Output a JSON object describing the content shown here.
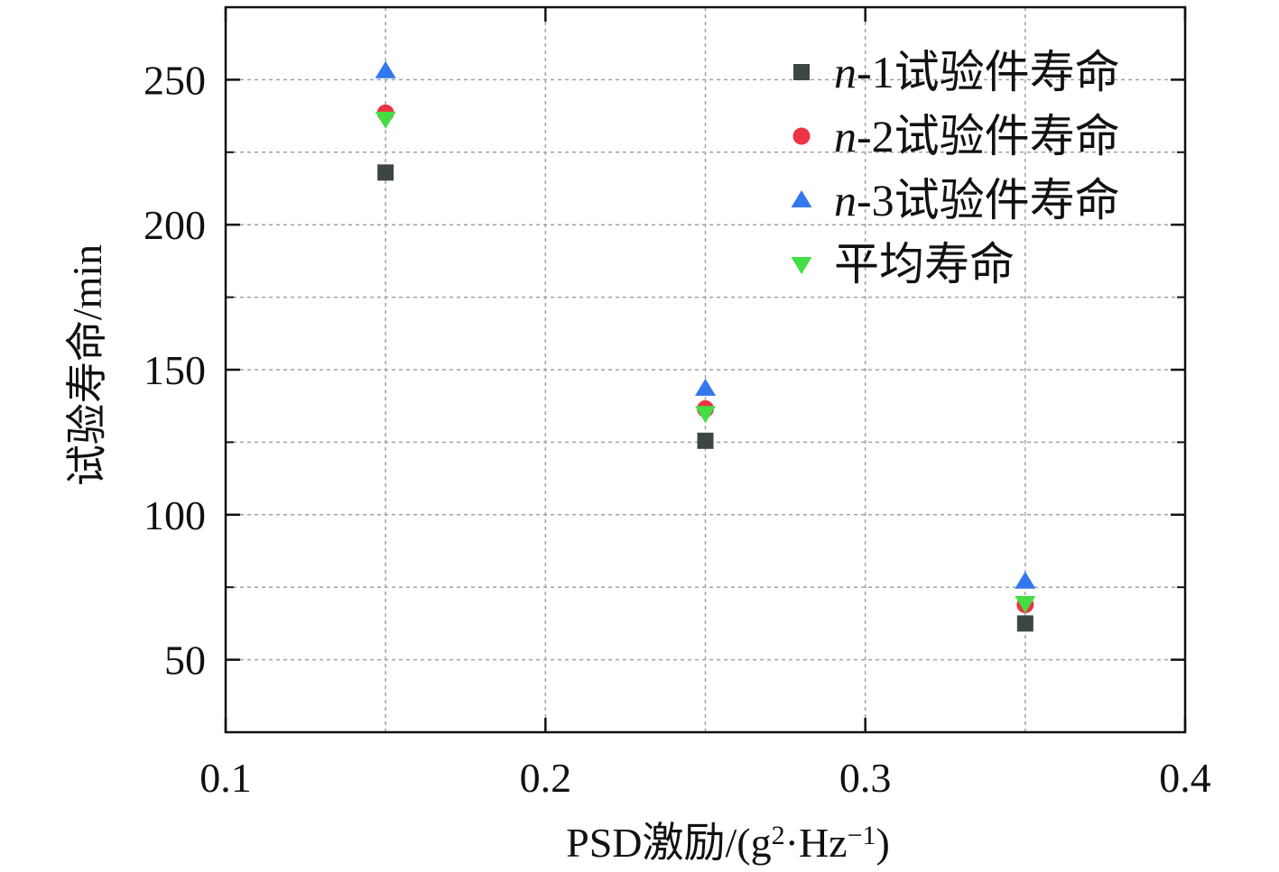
{
  "chart_data": {
    "type": "scatter",
    "title": "",
    "xlabel": "PSD激励/(g²·Hz⁻¹)",
    "xlabel_parts": {
      "main": "PSD激励/(g",
      "sup1": "2",
      "mid": "·Hz",
      "sup2": "−1",
      "end": ")"
    },
    "ylabel": "试验寿命/min",
    "xlim": [
      0.1,
      0.4
    ],
    "ylim": [
      25,
      275
    ],
    "xticks": [
      0.1,
      0.2,
      0.3,
      0.4
    ],
    "xtick_labels": [
      "0.1",
      "0.2",
      "0.3",
      "0.4"
    ],
    "yticks": [
      50,
      100,
      150,
      200,
      250
    ],
    "ytick_labels": [
      "50",
      "100",
      "150",
      "200",
      "250"
    ],
    "grid": true,
    "legend_position": "top-right",
    "x": [
      0.15,
      0.25,
      0.35
    ],
    "series": [
      {
        "name": "n-1试验件寿命",
        "name_prefix": "n",
        "name_rest": "-1试验件寿命",
        "marker": "square",
        "color": "#3d4545",
        "values": [
          218,
          125.5,
          62.5
        ]
      },
      {
        "name": "n-2试验件寿命",
        "name_prefix": "n",
        "name_rest": "-2试验件寿命",
        "marker": "circle",
        "color": "#ee3344",
        "values": [
          238.5,
          136.5,
          69
        ]
      },
      {
        "name": "n-3试验件寿命",
        "name_prefix": "n",
        "name_rest": "-3试验件寿命",
        "marker": "triangle-up",
        "color": "#3377ee",
        "values": [
          253,
          143.5,
          77
        ]
      },
      {
        "name": "平均寿命",
        "name_prefix": "",
        "name_rest": "平均寿命",
        "marker": "triangle-down",
        "color": "#44dd44",
        "values": [
          236.5,
          135,
          69.5
        ]
      }
    ]
  }
}
